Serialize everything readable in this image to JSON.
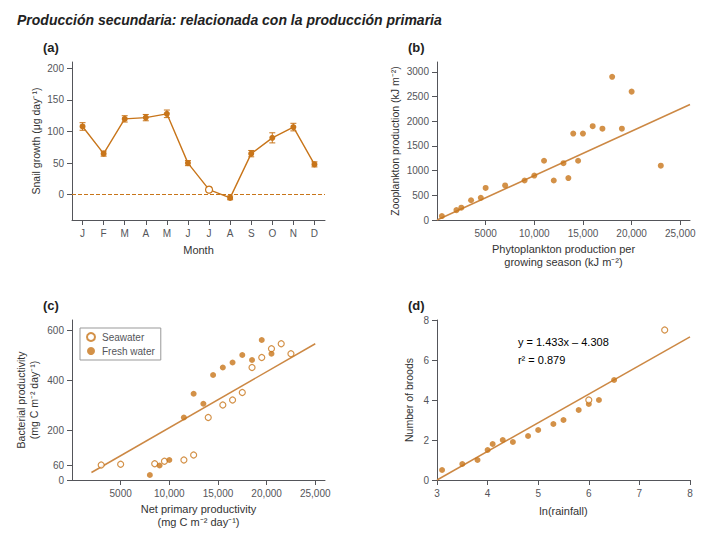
{
  "title": "Producción secundaria: relacionada con la producción primaria",
  "chart_data": [
    {
      "type": "line",
      "title": "(a)",
      "categories": [
        "J",
        "F",
        "M",
        "A",
        "M",
        "J",
        "J",
        "A",
        "S",
        "O",
        "N",
        "D"
      ],
      "series": [
        {
          "type": "line",
          "color": "#c8751a",
          "values": [
            108,
            65,
            120,
            122,
            128,
            50,
            8,
            -5,
            65,
            90,
            107,
            48
          ],
          "errors": [
            6,
            4,
            5,
            5,
            6,
            4,
            4,
            3,
            5,
            8,
            6,
            4
          ],
          "markers": [
            "filled",
            "filled",
            "filled",
            "filled",
            "filled",
            "filled",
            "open",
            "filled",
            "filled",
            "filled",
            "filled",
            "filled"
          ]
        }
      ],
      "hlines": [
        {
          "value": 0,
          "color": "#c8751a",
          "line_style": "dashed"
        }
      ],
      "xlabel": "Month",
      "ylabel": "Snail growth (μg day⁻¹)",
      "ylim": [
        -40,
        210
      ],
      "yticks": [
        0,
        50,
        100,
        150,
        200
      ],
      "grid": false
    },
    {
      "type": "scatter",
      "title": "(b)",
      "series": [
        {
          "type": "scatter",
          "color": "#c8751a",
          "marker": "filled",
          "x": [
            500,
            2000,
            2500,
            3500,
            4500,
            5000,
            7000,
            9000,
            10000,
            11000,
            12000,
            13000,
            13500,
            14000,
            14500,
            15000,
            16000,
            17000,
            18000,
            19000,
            20000,
            23000
          ],
          "values": [
            80,
            200,
            250,
            400,
            450,
            650,
            700,
            800,
            900,
            1200,
            800,
            1150,
            850,
            1750,
            1200,
            1750,
            1900,
            1850,
            2900,
            1850,
            2600,
            1100
          ]
        },
        {
          "type": "line",
          "color": "#cc8844",
          "x": [
            0,
            26000
          ],
          "values": [
            0,
            2340
          ]
        }
      ],
      "xlabel": "Phytoplankton production per\ngrowing season (kJ m⁻²)",
      "ylabel": "Zooplankton production (kJ m⁻²)",
      "xlim": [
        0,
        26000
      ],
      "ylim": [
        0,
        3200
      ],
      "xticks": [
        5000,
        {
          "value": 10000,
          "label": "10,000"
        },
        {
          "value": 15000,
          "label": "15,000"
        },
        {
          "value": 20000,
          "label": "20,000"
        },
        {
          "value": 25000,
          "label": "25,000"
        }
      ],
      "yticks": [
        0,
        500,
        1000,
        1500,
        2000,
        2500,
        3000
      ],
      "grid": false
    },
    {
      "type": "scatter",
      "title": "(c)",
      "series": [
        {
          "name": "Seawater",
          "type": "scatter",
          "color": "#c8751a",
          "marker": "open",
          "x": [
            3000,
            5000,
            8500,
            9500,
            11500,
            12500,
            14000,
            15500,
            16500,
            17500,
            18500,
            19500,
            20500,
            21500,
            22500
          ],
          "values": [
            60,
            63,
            65,
            75,
            80,
            100,
            250,
            300,
            320,
            350,
            450,
            490,
            525,
            545,
            505
          ]
        },
        {
          "name": "Fresh water",
          "type": "scatter",
          "color": "#c8751a",
          "marker": "filled",
          "x": [
            8000,
            9000,
            10000,
            11500,
            12500,
            13500,
            14500,
            15500,
            16500,
            17500,
            18500,
            19500,
            20500
          ],
          "values": [
            20,
            58,
            80,
            250,
            345,
            305,
            420,
            450,
            470,
            500,
            480,
            560,
            505
          ]
        },
        {
          "type": "line",
          "color": "#cc8844",
          "x": [
            2000,
            25000
          ],
          "values": [
            30,
            545
          ]
        }
      ],
      "xlabel": "Net primary productivity\n(mg C m⁻² day⁻¹)",
      "ylabel": "Bacterial productivity\n(mg C m⁻² day⁻¹)",
      "xlim": [
        0,
        26000
      ],
      "ylim": [
        0,
        640
      ],
      "xticks": [
        5000,
        {
          "value": 10000,
          "label": "10,000"
        },
        {
          "value": 15000,
          "label": "15,000"
        },
        {
          "value": 20000,
          "label": "20,000"
        },
        {
          "value": 25000,
          "label": "25,000"
        }
      ],
      "yticks": [
        0,
        60,
        200,
        400,
        600
      ],
      "legend": "upper left",
      "grid": false
    },
    {
      "type": "scatter",
      "title": "(d)",
      "series": [
        {
          "type": "scatter",
          "color": "#c8751a",
          "marker": "filled",
          "x": [
            3.1,
            3.5,
            3.8,
            4.0,
            4.1,
            4.3,
            4.5,
            4.8,
            5.0,
            5.3,
            5.5,
            5.8,
            6.0,
            6.2,
            6.5
          ],
          "values": [
            0.5,
            0.8,
            1.0,
            1.5,
            1.8,
            2.0,
            1.9,
            2.2,
            2.5,
            2.8,
            3.0,
            3.5,
            3.8,
            4.0,
            5.0
          ]
        },
        {
          "type": "scatter",
          "color": "#c8751a",
          "marker": "open",
          "x": [
            6.0,
            7.5
          ],
          "values": [
            4.0,
            7.5
          ]
        },
        {
          "type": "line",
          "color": "#cc8844",
          "x": [
            3.0,
            8.0
          ],
          "values": [
            0.0,
            7.157
          ]
        }
      ],
      "annotations": [
        {
          "text": "y = 1.433x – 4.308"
        },
        {
          "text": "r² = 0.879"
        }
      ],
      "xlabel": "ln(rainfall)",
      "ylabel": "Number of broods",
      "xlim": [
        3,
        8
      ],
      "ylim": [
        0,
        8
      ],
      "xticks": [
        3,
        4,
        5,
        6,
        7,
        8
      ],
      "yticks": [
        0,
        2,
        4,
        6,
        8
      ],
      "grid": false
    }
  ]
}
